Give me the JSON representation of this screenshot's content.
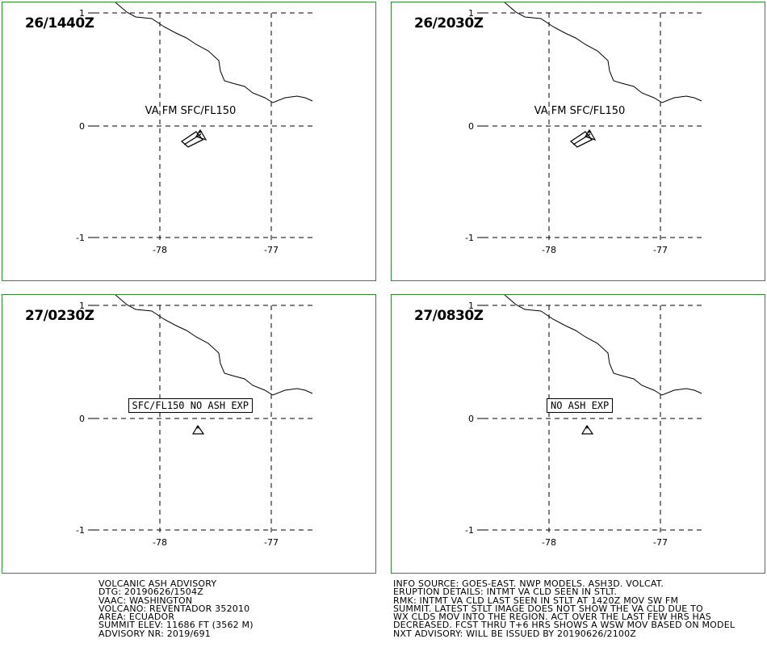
{
  "panels": [
    {
      "time": "26/1440Z",
      "label": "VA FM SFC/FL150",
      "label_type": "plain",
      "ash": "polygon"
    },
    {
      "time": "26/2030Z",
      "label": "VA FM SFC/FL150",
      "label_type": "plain",
      "ash": "polygon"
    },
    {
      "time": "27/0230Z",
      "label": "SFC/FL150 NO ASH EXP",
      "label_type": "box",
      "ash": "none"
    },
    {
      "time": "27/0830Z",
      "label": "NO ASH EXP",
      "label_type": "box",
      "ash": "none"
    }
  ],
  "axes": {
    "lat_labels": [
      "1",
      "0",
      "-1"
    ],
    "lon_labels": [
      "-78",
      "-77"
    ]
  },
  "advisory_left": [
    "VOLCANIC ASH ADVISORY",
    "DTG: 20190626/1504Z",
    "VAAC: WASHINGTON",
    "VOLCANO: REVENTADOR 352010",
    "AREA: ECUADOR",
    "SUMMIT ELEV: 11686 FT (3562 M)",
    "ADVISORY NR: 2019/691"
  ],
  "advisory_right": [
    "INFO SOURCE: GOES-EAST. NWP MODELS. ASH3D. VOLCAT.",
    "ERUPTION DETAILS: INTMT VA CLD SEEN IN STLT.",
    "RMK: INTMT VA CLD LAST SEEN IN STLT AT 1420Z MOV SW FM",
    "SUMMIT. LATEST STLT IMAGE DOES NOT SHOW THE VA CLD DUE TO",
    "WX CLDS MOV INTO THE REGION. ACT OVER THE LAST FEW HRS HAS",
    "DECREASED. FCST THRU T+6 HRS SHOWS A WSW MOV BASED ON MODEL",
    "NXT ADVISORY: WILL BE ISSUED BY 20190626/2100Z"
  ],
  "colors": {
    "panel_border": "#2e8b2e"
  }
}
